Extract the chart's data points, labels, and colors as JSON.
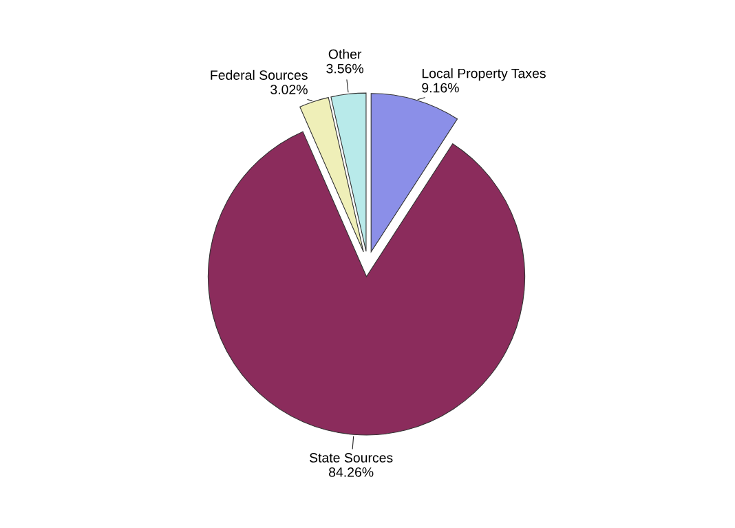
{
  "chart_data": {
    "type": "pie",
    "categories": [
      "Local Property Taxes",
      "State Sources",
      "Federal Sources",
      "Other"
    ],
    "values": [
      9.16,
      84.26,
      3.02,
      3.56
    ],
    "value_labels": [
      "9.16%",
      "84.26%",
      "3.02%",
      "3.56%"
    ],
    "colors": [
      "#8b8fe8",
      "#8b2c5c",
      "#efefb8",
      "#b8eaea"
    ]
  }
}
